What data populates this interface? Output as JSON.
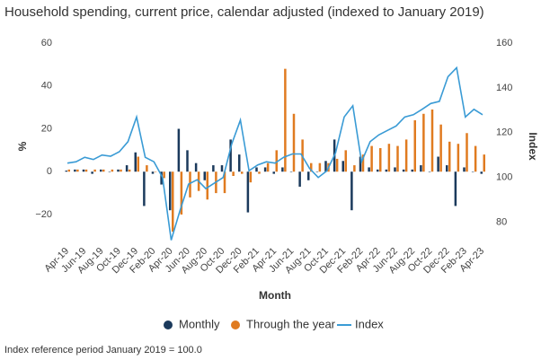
{
  "chart_data": {
    "type": "bar-line",
    "title": "Household spending, current price, calendar adjusted (indexed to January 2019)",
    "x_label": "Month",
    "y_label": "%",
    "y2_label": "Index",
    "footnote": "Index reference period January 2019 = 100.0",
    "categories": [
      "Apr-19",
      null,
      "Jun-19",
      null,
      "Aug-19",
      null,
      "Oct-19",
      null,
      "Dec-19",
      null,
      "Feb-20",
      null,
      "Apr-20",
      null,
      "Jun-20",
      null,
      "Aug-20",
      null,
      "Oct-20",
      null,
      "Dec-20",
      null,
      "Feb-21",
      null,
      "Apr-21",
      null,
      "Jun-21",
      null,
      "Aug-21",
      null,
      "Oct-21",
      null,
      "Dec-21",
      null,
      "Feb-22",
      null,
      "Apr-22",
      null,
      "Jun-22",
      null,
      "Aug-22",
      null,
      "Oct-22",
      null,
      "Dec-22",
      null,
      "Feb-23",
      null,
      "Apr-23"
    ],
    "ylim": [
      -33,
      60
    ],
    "yticks": [
      {
        "value": -20,
        "label": "−20"
      },
      0,
      20,
      40,
      60
    ],
    "y2lim": [
      71,
      160
    ],
    "y2ticks": [
      80,
      100,
      120,
      140,
      160
    ],
    "series": [
      {
        "name": "Monthly",
        "color": "#1b3a5c",
        "kind": "bar",
        "values": [
          0.5,
          1,
          1,
          -1,
          1,
          0,
          1,
          3,
          9,
          -16,
          -1,
          -6,
          -18,
          20,
          10,
          4,
          -4,
          3,
          3,
          15,
          8,
          -19,
          2,
          2,
          -1,
          2,
          0,
          -7,
          -4,
          0,
          5,
          15,
          5,
          -18,
          7,
          2,
          1,
          1,
          2,
          1,
          1,
          3,
          0,
          7,
          3,
          -16,
          2,
          0,
          -1
        ]
      },
      {
        "name": "Through the year",
        "color": "#e07b20",
        "kind": "bar",
        "values": [
          1,
          1,
          1,
          1,
          1,
          1,
          1,
          1,
          7,
          3,
          0,
          -3,
          -28,
          -20,
          -12,
          -9,
          -13,
          -10,
          -10,
          -2,
          -1,
          -5,
          -1,
          4,
          10,
          48,
          27,
          15,
          4,
          4,
          4,
          6,
          10,
          3,
          8,
          12,
          11,
          13,
          12,
          15,
          24,
          27,
          29,
          22,
          14,
          13,
          18,
          12,
          8
        ]
      },
      {
        "name": "Index",
        "color": "#3a9bd5",
        "kind": "line",
        "axis": "y2",
        "values": [
          106.4,
          107,
          109,
          108,
          110,
          109.5,
          111.5,
          116,
          127,
          109,
          107,
          100,
          72,
          85,
          97,
          99,
          95,
          97.5,
          100,
          115,
          125.6,
          103,
          105.6,
          107,
          106.4,
          109,
          110.5,
          110.5,
          104,
          100,
          103,
          111,
          127,
          132,
          107,
          116,
          119,
          121,
          123,
          127,
          128,
          130.4,
          133,
          134,
          145,
          149,
          127,
          130.4,
          128
        ]
      }
    ]
  }
}
